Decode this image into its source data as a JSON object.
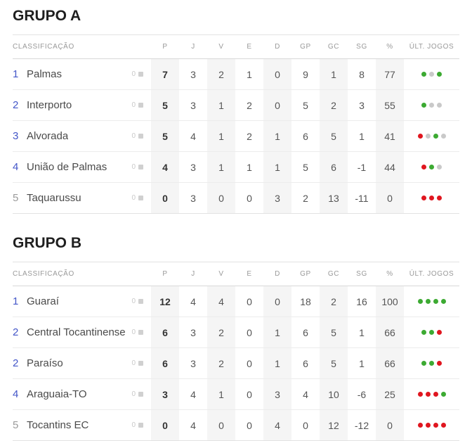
{
  "table": {
    "classification_label": "CLASSIFICAÇÃO",
    "columns": [
      "P",
      "J",
      "V",
      "E",
      "D",
      "GP",
      "GC",
      "SG",
      "%"
    ],
    "last_games_label": "ÚLT. JOGOS"
  },
  "colors": {
    "win_dot": "#3caa32",
    "loss_dot": "#e0161f",
    "draw_dot": "#c9c9c9",
    "rank_highlight": "#4356c8",
    "rank_muted": "#9b9b9b",
    "column_shade": "#f5f5f5"
  },
  "groups": [
    {
      "title": "GRUPO A",
      "rows": [
        {
          "rank": "1",
          "rank_style": "highlight",
          "name": "Palmas",
          "variation": "0",
          "stats": [
            "7",
            "3",
            "2",
            "1",
            "0",
            "9",
            "1",
            "8",
            "77"
          ],
          "last_games": [
            "win",
            "draw",
            "win"
          ]
        },
        {
          "rank": "2",
          "rank_style": "highlight",
          "name": "Interporto",
          "variation": "0",
          "stats": [
            "5",
            "3",
            "1",
            "2",
            "0",
            "5",
            "2",
            "3",
            "55"
          ],
          "last_games": [
            "win",
            "draw",
            "draw"
          ]
        },
        {
          "rank": "3",
          "rank_style": "highlight",
          "name": "Alvorada",
          "variation": "0",
          "stats": [
            "5",
            "4",
            "1",
            "2",
            "1",
            "6",
            "5",
            "1",
            "41"
          ],
          "last_games": [
            "loss",
            "draw",
            "win",
            "draw"
          ]
        },
        {
          "rank": "4",
          "rank_style": "highlight",
          "name": "União de Palmas",
          "variation": "0",
          "stats": [
            "4",
            "3",
            "1",
            "1",
            "1",
            "5",
            "6",
            "-1",
            "44"
          ],
          "last_games": [
            "loss",
            "win",
            "draw"
          ]
        },
        {
          "rank": "5",
          "rank_style": "muted",
          "name": "Taquarussu",
          "variation": "0",
          "stats": [
            "0",
            "3",
            "0",
            "0",
            "3",
            "2",
            "13",
            "-11",
            "0"
          ],
          "last_games": [
            "loss",
            "loss",
            "loss"
          ]
        }
      ]
    },
    {
      "title": "GRUPO B",
      "rows": [
        {
          "rank": "1",
          "rank_style": "highlight",
          "name": "Guaraí",
          "variation": "0",
          "stats": [
            "12",
            "4",
            "4",
            "0",
            "0",
            "18",
            "2",
            "16",
            "100"
          ],
          "last_games": [
            "win",
            "win",
            "win",
            "win"
          ]
        },
        {
          "rank": "2",
          "rank_style": "highlight",
          "name": "Central Tocantinense",
          "variation": "0",
          "stats": [
            "6",
            "3",
            "2",
            "0",
            "1",
            "6",
            "5",
            "1",
            "66"
          ],
          "last_games": [
            "win",
            "win",
            "loss"
          ]
        },
        {
          "rank": "2",
          "rank_style": "highlight",
          "name": "Paraíso",
          "variation": "0",
          "stats": [
            "6",
            "3",
            "2",
            "0",
            "1",
            "6",
            "5",
            "1",
            "66"
          ],
          "last_games": [
            "win",
            "win",
            "loss"
          ]
        },
        {
          "rank": "4",
          "rank_style": "highlight",
          "name": "Araguaia-TO",
          "variation": "0",
          "stats": [
            "3",
            "4",
            "1",
            "0",
            "3",
            "4",
            "10",
            "-6",
            "25"
          ],
          "last_games": [
            "loss",
            "loss",
            "loss",
            "win"
          ]
        },
        {
          "rank": "5",
          "rank_style": "muted",
          "name": "Tocantins EC",
          "variation": "0",
          "stats": [
            "0",
            "4",
            "0",
            "0",
            "4",
            "0",
            "12",
            "-12",
            "0"
          ],
          "last_games": [
            "loss",
            "loss",
            "loss",
            "loss"
          ]
        }
      ]
    }
  ]
}
